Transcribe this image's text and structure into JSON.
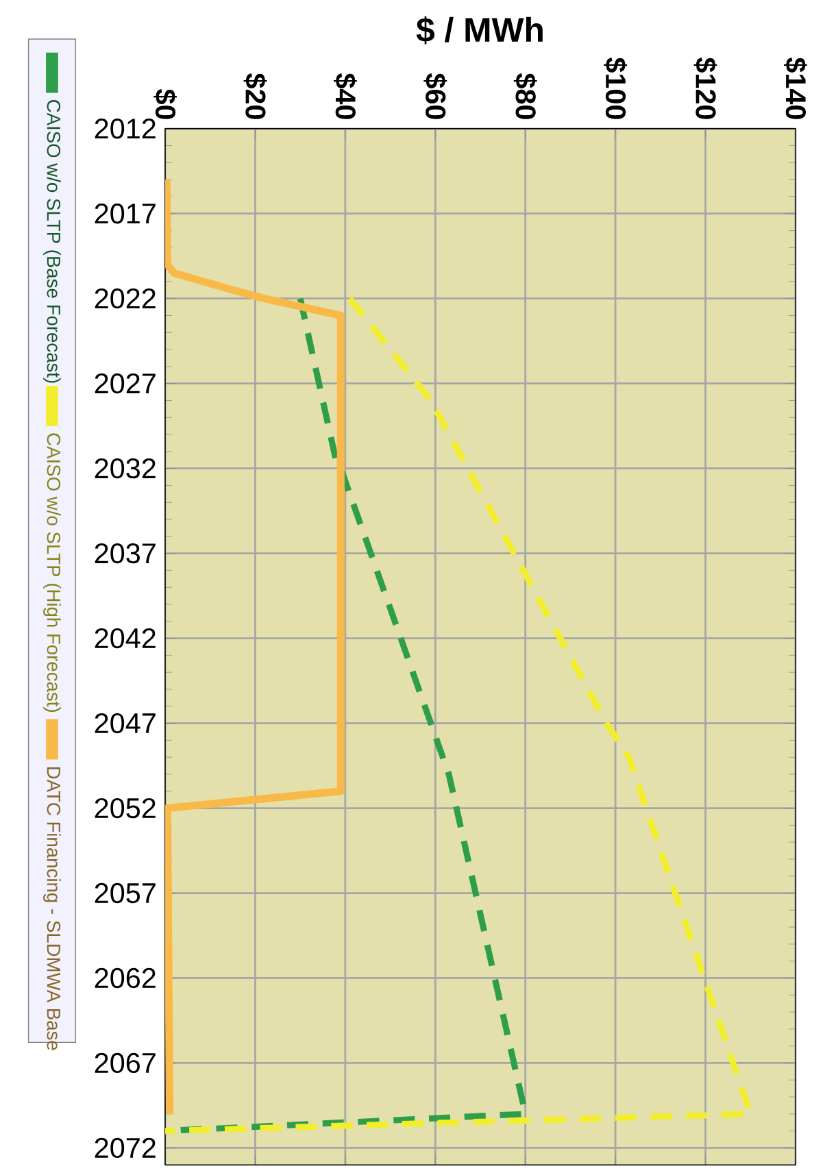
{
  "chart_data": {
    "type": "line",
    "xlabel": "$ / MWh",
    "ylim": [
      2073,
      2012
    ],
    "yticks": [
      2012,
      2017,
      2022,
      2027,
      2032,
      2037,
      2042,
      2047,
      2052,
      2057,
      2062,
      2067,
      2072
    ],
    "xlim": [
      0,
      140
    ],
    "xticks": [
      {
        "value": 0,
        "label": "$0"
      },
      {
        "value": 20,
        "label": "$20"
      },
      {
        "value": 40,
        "label": "$40"
      },
      {
        "value": 60,
        "label": "$60"
      },
      {
        "value": 80,
        "label": "$80"
      },
      {
        "value": 100,
        "label": "$100"
      },
      {
        "value": 120,
        "label": "$120"
      },
      {
        "value": 140,
        "label": "$140"
      }
    ],
    "grid": true,
    "legend": "left",
    "marker": "none",
    "series": [
      {
        "name": "CAISO w/o SLTP (Base Forecast)",
        "color": "#2e9e4a",
        "line_style": "dashed",
        "x": [
          30,
          38,
          39,
          59,
          63,
          80,
          0
        ],
        "values": [
          2022,
          2031.6,
          2032,
          2047,
          2050,
          2070,
          2071
        ]
      },
      {
        "name": "CAISO w/o SLTP (High Forecast)",
        "color": "#f2ee2e",
        "line_style": "dashed",
        "x": [
          41,
          59,
          98,
          103,
          130,
          0
        ],
        "values": [
          2022,
          2028,
          2047,
          2049,
          2070,
          2071
        ]
      },
      {
        "name": "DATC Financing - SLDMWA Base",
        "color": "#f9b949",
        "line_style": "solid",
        "x": [
          0.3,
          0.5,
          2,
          15,
          22,
          39,
          39,
          0.5,
          1
        ],
        "values": [
          2015,
          2020,
          2020.5,
          2021.5,
          2022,
          2023,
          2051,
          2052,
          2070
        ]
      }
    ]
  }
}
